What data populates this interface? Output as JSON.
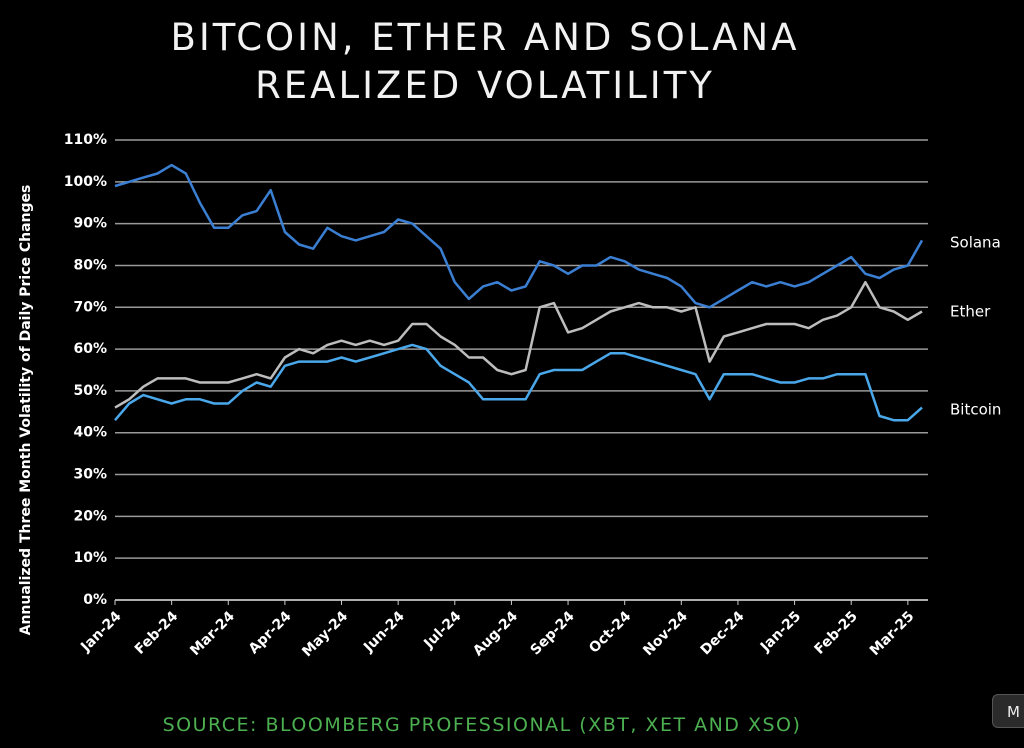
{
  "chart_data": {
    "type": "line",
    "title": "BITCOIN, ETHER AND SOLANA REALIZED VOLATILITY",
    "y_label": "Annualized Three Month Volatility of Daily Price Changes",
    "source": "SOURCE: BLOOMBERG PROFESSIONAL (XBT, XET AND XSO)",
    "categories": [
      "Jan-24",
      null,
      null,
      null,
      "Feb-24",
      null,
      null,
      null,
      "Mar-24",
      null,
      null,
      null,
      "Apr-24",
      null,
      null,
      null,
      "May-24",
      null,
      null,
      null,
      "Jun-24",
      null,
      null,
      null,
      "Jul-24",
      null,
      null,
      null,
      "Aug-24",
      null,
      null,
      null,
      "Sep-24",
      null,
      null,
      null,
      "Oct-24",
      null,
      null,
      null,
      "Nov-24",
      null,
      null,
      null,
      "Dec-24",
      null,
      null,
      null,
      "Jan-25",
      null,
      null,
      null,
      "Feb-25",
      null,
      null,
      null,
      "Mar-25",
      null
    ],
    "series": [
      {
        "name": "Solana",
        "color": "#3b7fd3",
        "values": [
          99,
          100,
          101,
          102,
          104,
          102,
          95,
          89,
          89,
          92,
          93,
          98,
          88,
          85,
          84,
          89,
          87,
          86,
          87,
          88,
          91,
          90,
          87,
          84,
          76,
          72,
          75,
          76,
          74,
          75,
          81,
          80,
          78,
          80,
          80,
          82,
          81,
          79,
          78,
          77,
          75,
          71,
          70,
          72,
          74,
          76,
          75,
          76,
          75,
          76,
          78,
          80,
          82,
          78,
          77,
          79,
          80,
          86
        ]
      },
      {
        "name": "Ether",
        "color": "#bdbdbd",
        "values": [
          46,
          48,
          51,
          53,
          53,
          53,
          52,
          52,
          52,
          53,
          54,
          53,
          58,
          60,
          59,
          61,
          62,
          61,
          62,
          61,
          62,
          66,
          66,
          63,
          61,
          58,
          58,
          55,
          54,
          55,
          70,
          71,
          64,
          65,
          67,
          69,
          70,
          71,
          70,
          70,
          69,
          70,
          57,
          63,
          64,
          65,
          66,
          66,
          66,
          65,
          67,
          68,
          70,
          76,
          70,
          69,
          67,
          69
        ]
      },
      {
        "name": "Bitcoin",
        "color": "#4aa8ea",
        "values": [
          43,
          47,
          49,
          48,
          47,
          48,
          48,
          47,
          47,
          50,
          52,
          51,
          56,
          57,
          57,
          57,
          58,
          57,
          58,
          59,
          60,
          61,
          60,
          56,
          54,
          52,
          48,
          48,
          48,
          48,
          54,
          55,
          55,
          55,
          57,
          59,
          59,
          58,
          57,
          56,
          55,
          54,
          48,
          54,
          54,
          54,
          53,
          52,
          52,
          53,
          53,
          54,
          54,
          54,
          44,
          43,
          43,
          46
        ]
      }
    ],
    "ylim": [
      0,
      110
    ],
    "yticks": [
      {
        "value": 0,
        "label": "0%"
      },
      {
        "value": 10,
        "label": "10%"
      },
      {
        "value": 20,
        "label": "20%"
      },
      {
        "value": 30,
        "label": "30%"
      },
      {
        "value": 40,
        "label": "40%"
      },
      {
        "value": 50,
        "label": "50%"
      },
      {
        "value": 60,
        "label": "60%"
      },
      {
        "value": 70,
        "label": "70%"
      },
      {
        "value": 80,
        "label": "80%"
      },
      {
        "value": 90,
        "label": "90%"
      },
      {
        "value": 100,
        "label": "100%"
      },
      {
        "value": 110,
        "label": "110%"
      }
    ],
    "grid": true
  },
  "button": "M"
}
